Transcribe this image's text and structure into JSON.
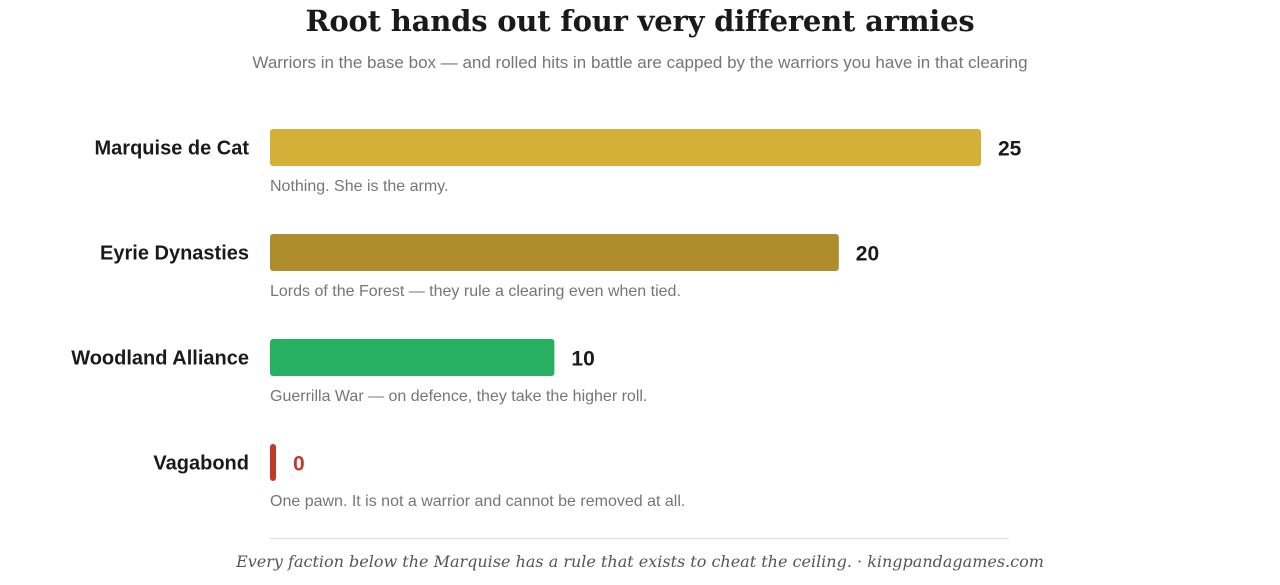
{
  "title": "Root hands out four very different armies",
  "subtitle": "Warriors in the base box — and rolled hits in battle are capped by the warriors you have in that clearing",
  "footer": "Every faction below the Marquise has a rule that exists to cheat the ceiling. · kingpandagames.com",
  "chart_data": {
    "type": "bar",
    "orientation": "horizontal",
    "title": "Root hands out four very different armies",
    "subtitle": "Warriors in the base box — and rolled hits in battle are capped by the warriors you have in that clearing",
    "categories": [
      "Marquise de Cat",
      "Eyrie Dynasties",
      "Woodland Alliance",
      "Vagabond"
    ],
    "values": [
      25,
      20,
      10,
      0
    ],
    "value_labels": [
      "25",
      "20",
      "10",
      "0"
    ],
    "notes": [
      "Nothing. She is the army.",
      "Lords of the Forest — they rule a clearing even when tied.",
      "Guerrilla War — on defence, they take the higher roll.",
      "One pawn. It is not a warrior and cannot be removed at all."
    ],
    "colors": [
      "#d4b038",
      "#b08d2c",
      "#27b062",
      "#c0392b"
    ],
    "value_label_colors": [
      "#1a1a1a",
      "#1a1a1a",
      "#1a1a1a",
      "#c0392b"
    ],
    "xlim": [
      0,
      25
    ],
    "grid": false,
    "legend": "none"
  }
}
